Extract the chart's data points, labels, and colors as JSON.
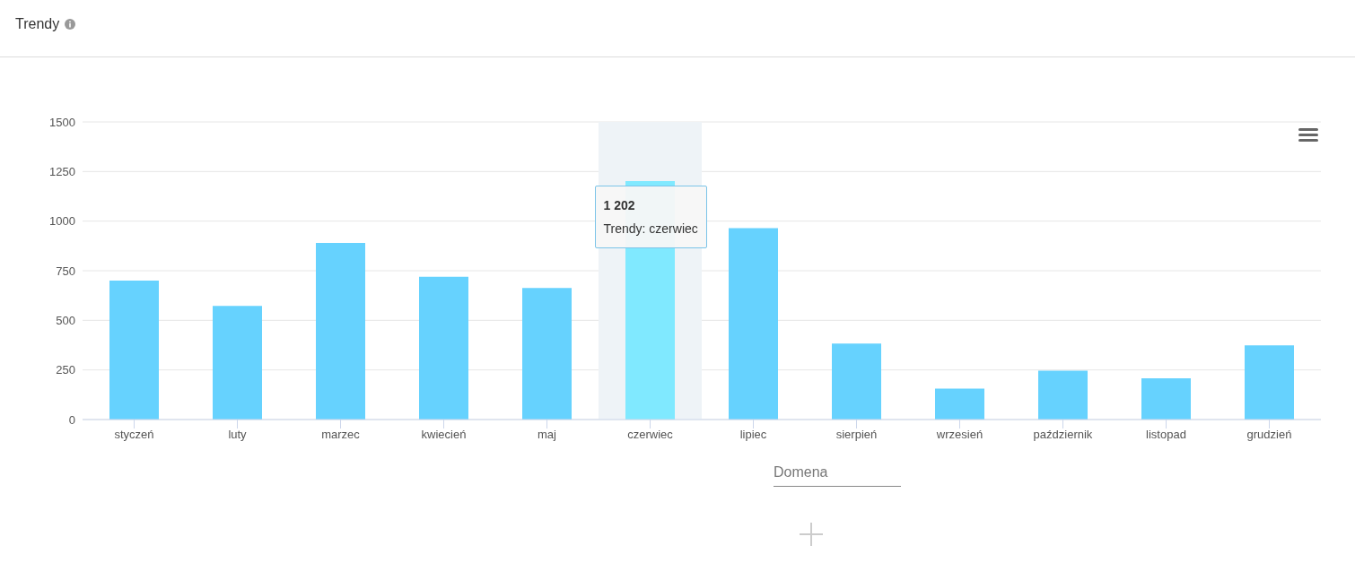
{
  "chart_data": {
    "type": "bar",
    "title": "Trendy",
    "categories": [
      "styczeń",
      "luty",
      "marzec",
      "kwiecień",
      "maj",
      "czerwiec",
      "lipiec",
      "sierpień",
      "wrzesień",
      "październik",
      "listopad",
      "grudzień"
    ],
    "values": [
      700,
      573,
      890,
      719,
      663,
      1202,
      965,
      383,
      156,
      246,
      208,
      374
    ],
    "colors": [
      "#66d2fe",
      "#66d2fe",
      "#66d2fe",
      "#66d2fe",
      "#66d2fe",
      "#80e9ff",
      "#66d2fe",
      "#66d2fe",
      "#66d2fe",
      "#66d2fe",
      "#66d2fe",
      "#66d2fe"
    ],
    "value_labels": [
      null,
      null,
      null,
      null,
      null,
      "1 202",
      null,
      null,
      null,
      null,
      null,
      null
    ],
    "annotations": [
      "Trendy: czerwiec",
      "Domena"
    ],
    "bands": [
      {
        "axis": "x",
        "from": "czerwiec",
        "to": "czerwiec",
        "color": "#eef3f7"
      }
    ],
    "ylim": [
      0,
      1500
    ],
    "yticks": [
      0,
      250,
      500,
      750,
      1000,
      1250,
      1500
    ],
    "grid": "y"
  }
}
